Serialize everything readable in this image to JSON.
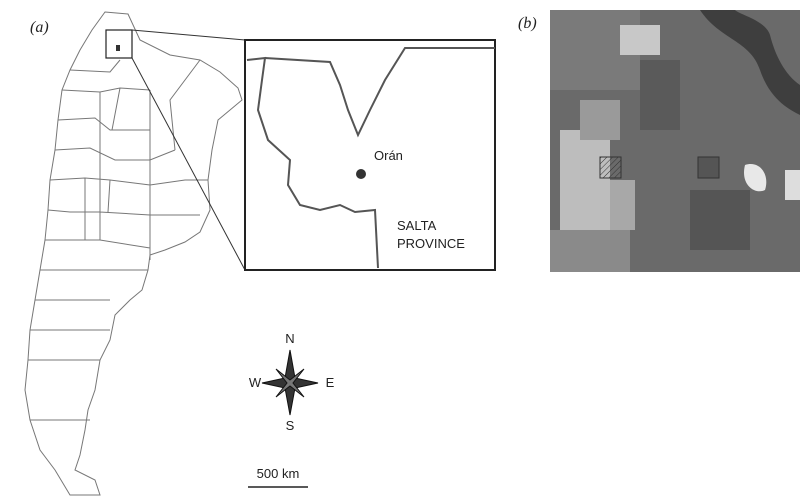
{
  "panel_a": {
    "label": "(a)",
    "inset": {
      "town": "Orán",
      "region": [
        "SALTA",
        "PROVINCE"
      ]
    },
    "compass": {
      "north": "N",
      "east": "E",
      "south": "S",
      "west": "W"
    },
    "scale_bar": "500 km"
  },
  "panel_b": {
    "label": "(b)"
  }
}
